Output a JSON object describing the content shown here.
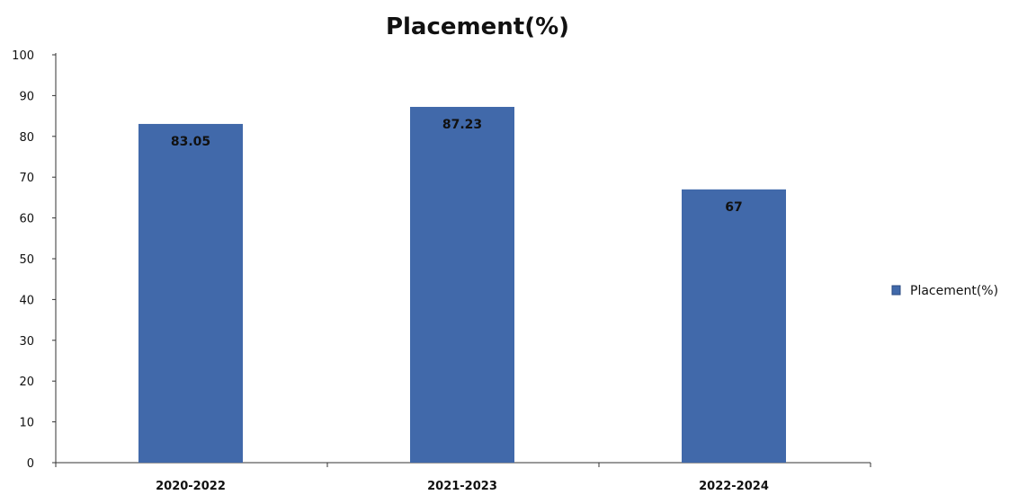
{
  "chart_data": {
    "type": "bar",
    "title": "Placement(%)",
    "xlabel": "",
    "ylabel": "",
    "categories": [
      "2020-2022",
      "2021-2023",
      "2022-2024"
    ],
    "series": [
      {
        "name": "Placement(%)",
        "values": [
          83.05,
          87.23,
          67
        ],
        "labels": [
          "83.05",
          "87.23",
          "67"
        ],
        "color": "#4169AA"
      }
    ],
    "ylim": [
      0,
      100
    ],
    "yticks": [
      0,
      10,
      20,
      30,
      40,
      50,
      60,
      70,
      80,
      90,
      100
    ],
    "grid": false,
    "legend": "right"
  }
}
